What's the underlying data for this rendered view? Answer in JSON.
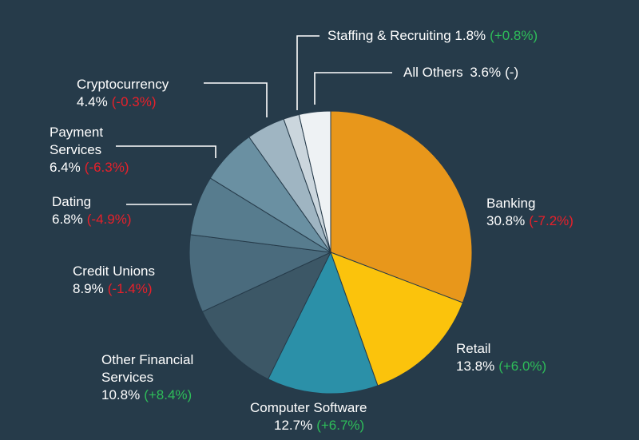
{
  "chart_data": {
    "type": "pie",
    "start": "12 o'clock, clockwise",
    "slices": [
      {
        "label": "Banking",
        "value": 30.8,
        "change": "(-7.2%)",
        "trend": "neg",
        "color": "#e8971b"
      },
      {
        "label": "Retail",
        "value": 13.8,
        "change": "(+6.0%)",
        "trend": "pos",
        "color": "#fbc30c"
      },
      {
        "label": "Computer Software",
        "value": 12.7,
        "change": "(+6.7%)",
        "trend": "pos",
        "color": "#2b90a8"
      },
      {
        "label": "Other Financial Services",
        "value": 10.8,
        "change": "(+8.4%)",
        "trend": "pos",
        "color": "#3c5766"
      },
      {
        "label": "Credit Unions",
        "value": 8.9,
        "change": "(-1.4%)",
        "trend": "neg",
        "color": "#4a6b7d"
      },
      {
        "label": "Dating",
        "value": 6.8,
        "change": "(-4.9%)",
        "trend": "neg",
        "color": "#577c8e"
      },
      {
        "label": "Payment Services",
        "value": 6.4,
        "change": "(-6.3%)",
        "trend": "neg",
        "color": "#6a90a2"
      },
      {
        "label": "Cryptocurrency",
        "value": 4.4,
        "change": "(-0.3%)",
        "trend": "neg",
        "color": "#9fb5c2"
      },
      {
        "label": "Staffing & Recruiting",
        "value": 1.8,
        "change": "(+0.8%)",
        "trend": "pos",
        "color": "#cbd6dd"
      },
      {
        "label": "All Others",
        "value": 3.6,
        "change": "(-)",
        "trend": "neu",
        "color": "#eef2f4"
      }
    ]
  },
  "labels": {
    "banking": {
      "name": "Banking",
      "pct": "30.8%",
      "change": "(-7.2%)"
    },
    "retail": {
      "name": "Retail",
      "pct": "13.8%",
      "change": "(+6.0%)"
    },
    "software": {
      "name": "Computer Software",
      "pct": "12.7%",
      "change": "(+6.7%)"
    },
    "other_fin": {
      "name1": "Other Financial",
      "name2": "Services",
      "pct": "10.8%",
      "change": "(+8.4%)"
    },
    "credit": {
      "name": "Credit Unions",
      "pct": "8.9%",
      "change": "(-1.4%)"
    },
    "dating": {
      "name": "Dating",
      "pct": "6.8%",
      "change": "(-4.9%)"
    },
    "payment": {
      "name1": "Payment",
      "name2": "Services",
      "pct": "6.4%",
      "change": "(-6.3%)"
    },
    "crypto": {
      "name": "Cryptocurrency",
      "pct": "4.4%",
      "change": "(-0.3%)"
    },
    "staffing": {
      "name": "Staffing & Recruiting",
      "pct": "1.8%",
      "change": "(+0.8%)"
    },
    "others": {
      "name": "All Others",
      "pct": "3.6%",
      "change": "(-)"
    }
  },
  "colors": {
    "background": "#263b4a",
    "negative": "#e8202a",
    "positive": "#2ebd59"
  }
}
